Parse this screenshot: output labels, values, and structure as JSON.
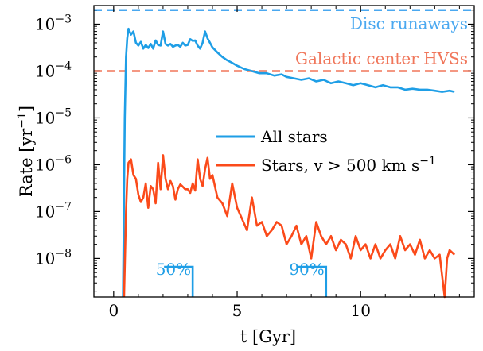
{
  "chart_data": {
    "type": "line",
    "xlabel": "t [Gyr]",
    "ylabel": "Rate [yr",
    "ylabel_sup": "−1",
    "ylabel_end": "]",
    "y_scale": "log",
    "xlim": [
      -0.8,
      14.6
    ],
    "ylim": [
      1.5e-09,
      0.0025
    ],
    "x_ticks": [
      0,
      5,
      10
    ],
    "x_tick_labels": [
      "0",
      "5",
      "10"
    ],
    "y_ticks": [
      1e-08,
      1e-07,
      1e-06,
      1e-05,
      0.0001,
      0.001
    ],
    "y_tick_labels": [
      {
        "base": "10",
        "exp": "−8"
      },
      {
        "base": "10",
        "exp": "−7"
      },
      {
        "base": "10",
        "exp": "−6"
      },
      {
        "base": "10",
        "exp": "−5"
      },
      {
        "base": "10",
        "exp": "−4"
      },
      {
        "base": "10",
        "exp": "−3"
      }
    ],
    "grid": false,
    "legend_position": "center-right",
    "series": [
      {
        "name": "All stars",
        "color": "#1e9ee6",
        "x": [
          0.38,
          0.45,
          0.5,
          0.55,
          0.6,
          0.7,
          0.8,
          0.9,
          1.0,
          1.1,
          1.2,
          1.3,
          1.4,
          1.5,
          1.6,
          1.7,
          1.8,
          1.9,
          2.0,
          2.1,
          2.2,
          2.3,
          2.4,
          2.5,
          2.6,
          2.7,
          2.8,
          2.9,
          3.0,
          3.1,
          3.2,
          3.3,
          3.4,
          3.5,
          3.6,
          3.7,
          3.8,
          3.9,
          4.0,
          4.2,
          4.4,
          4.6,
          4.8,
          5.0,
          5.3,
          5.6,
          5.9,
          6.2,
          6.5,
          6.8,
          7.0,
          7.3,
          7.6,
          7.9,
          8.2,
          8.5,
          8.8,
          9.1,
          9.4,
          9.7,
          10.0,
          10.3,
          10.6,
          10.9,
          11.2,
          11.5,
          11.8,
          12.1,
          12.4,
          12.7,
          13.0,
          13.3,
          13.6,
          13.8
        ],
        "values": [
          1e-09,
          1e-05,
          0.0002,
          0.0005,
          0.0008,
          0.0006,
          0.0007,
          0.0004,
          0.00035,
          0.00042,
          0.0003,
          0.00036,
          0.00031,
          0.00038,
          0.0003,
          0.00045,
          0.00036,
          0.00035,
          0.0007,
          0.00038,
          0.00035,
          0.00038,
          0.00033,
          0.00035,
          0.00036,
          0.00033,
          0.0004,
          0.00035,
          0.00036,
          0.00048,
          0.00044,
          0.00045,
          0.00035,
          0.0003,
          0.0004,
          0.0007,
          0.0005,
          0.0004,
          0.00032,
          0.00025,
          0.0002,
          0.00017,
          0.00015,
          0.00013,
          0.00011,
          0.0001,
          9e-05,
          9e-05,
          8e-05,
          8.5e-05,
          7.5e-05,
          7e-05,
          6.5e-05,
          7e-05,
          6e-05,
          6.5e-05,
          5.5e-05,
          6e-05,
          5.5e-05,
          5e-05,
          5.5e-05,
          5e-05,
          4.5e-05,
          5e-05,
          4.5e-05,
          4.5e-05,
          4e-05,
          4.2e-05,
          4e-05,
          4e-05,
          3.8e-05,
          3.6e-05,
          3.8e-05,
          3.6e-05
        ]
      },
      {
        "name": "Stars, v > 500 km s",
        "name_sup": "−1",
        "color": "#fb4a1a",
        "x": [
          0.42,
          0.5,
          0.55,
          0.6,
          0.7,
          0.8,
          0.9,
          1.0,
          1.1,
          1.2,
          1.3,
          1.4,
          1.5,
          1.6,
          1.7,
          1.8,
          1.9,
          2.0,
          2.1,
          2.2,
          2.3,
          2.4,
          2.5,
          2.6,
          2.7,
          2.8,
          2.9,
          3.0,
          3.1,
          3.2,
          3.3,
          3.4,
          3.5,
          3.6,
          3.7,
          3.8,
          3.9,
          4.0,
          4.2,
          4.4,
          4.6,
          4.8,
          5.0,
          5.2,
          5.4,
          5.6,
          5.8,
          6.0,
          6.2,
          6.4,
          6.6,
          6.8,
          7.0,
          7.2,
          7.4,
          7.6,
          7.8,
          8.0,
          8.2,
          8.4,
          8.6,
          8.8,
          9.0,
          9.2,
          9.4,
          9.6,
          9.8,
          10.0,
          10.2,
          10.4,
          10.6,
          10.8,
          11.0,
          11.2,
          11.4,
          11.6,
          11.8,
          12.0,
          12.2,
          12.4,
          12.6,
          12.8,
          13.0,
          13.2,
          13.4,
          13.5,
          13.6,
          13.8
        ],
        "values": [
          1e-09,
          1e-07,
          5e-07,
          1.1e-06,
          1.3e-06,
          6e-07,
          5e-07,
          2.3e-07,
          1.6e-07,
          2e-07,
          4e-07,
          1.2e-07,
          3.5e-07,
          3e-07,
          1.5e-07,
          1.1e-06,
          3e-07,
          1.6e-06,
          5e-07,
          3e-07,
          4.5e-07,
          3.5e-07,
          1.8e-07,
          3e-07,
          3.8e-07,
          3.4e-07,
          3e-07,
          3e-07,
          2.5e-07,
          4e-07,
          2.8e-07,
          1.3e-06,
          5e-07,
          3.5e-07,
          8e-07,
          1.4e-06,
          5e-07,
          6e-07,
          2e-07,
          1.5e-07,
          8e-08,
          4e-07,
          1.2e-07,
          7e-08,
          4e-08,
          2e-07,
          5e-08,
          6e-08,
          3e-08,
          4e-08,
          6e-08,
          5e-08,
          2e-08,
          3e-08,
          5e-08,
          2e-08,
          3e-08,
          1e-08,
          6e-08,
          3e-08,
          2e-08,
          3e-08,
          1.5e-08,
          2.5e-08,
          2e-08,
          1e-08,
          3e-08,
          1.5e-08,
          2e-08,
          1e-08,
          2e-08,
          1e-08,
          1.5e-08,
          2e-08,
          1e-08,
          3e-08,
          1.5e-08,
          2e-08,
          1.2e-08,
          2.5e-08,
          1e-08,
          1.5e-08,
          1e-08,
          1.2e-08,
          1e-09,
          1e-08,
          1.5e-08,
          1.2e-08
        ]
      }
    ],
    "reference_lines": [
      {
        "label": "Disc runaways",
        "value": 0.002,
        "color": "#4aa8f0"
      },
      {
        "label": "Galactic center HVSs",
        "value": 0.0001,
        "color": "#f0765a"
      }
    ],
    "percentile_markers": [
      {
        "label": "50%",
        "x": 3.2,
        "color": "#1e9ee6"
      },
      {
        "label": "90%",
        "x": 8.6,
        "color": "#1e9ee6"
      }
    ]
  }
}
